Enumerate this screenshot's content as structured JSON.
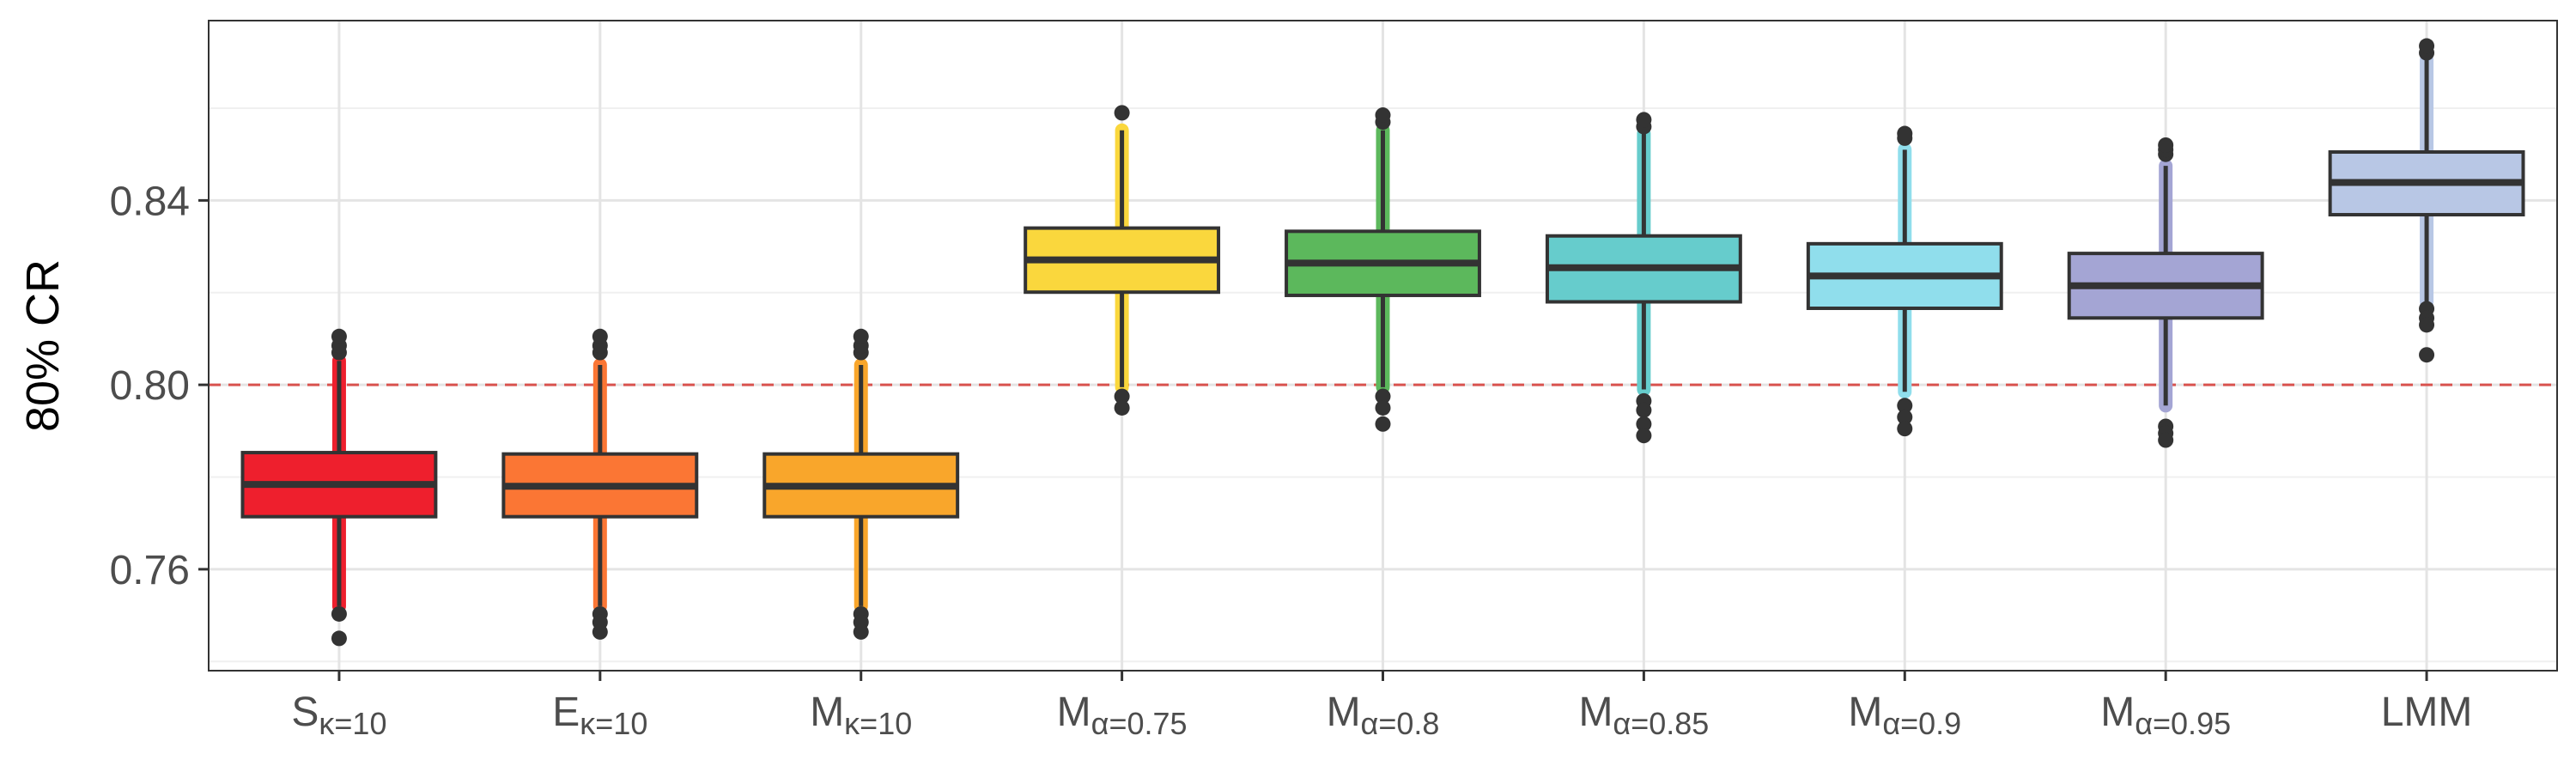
{
  "chart_data": {
    "type": "boxplot",
    "ylabel": "80% CR",
    "ylim": [
      0.738,
      0.879
    ],
    "yticks": [
      0.76,
      0.8,
      0.84
    ],
    "ytick_labels": [
      "0.76",
      "0.80",
      "0.84"
    ],
    "grid": true,
    "reference_line": {
      "y": 0.8,
      "style": "dashed",
      "color": "#d9534f"
    },
    "categories": [
      {
        "main": "S",
        "sub": "κ=10"
      },
      {
        "main": "E",
        "sub": "κ=10"
      },
      {
        "main": "M",
        "sub": "κ=10"
      },
      {
        "main": "M",
        "sub": "α=0.75"
      },
      {
        "main": "M",
        "sub": "α=0.8"
      },
      {
        "main": "M",
        "sub": "α=0.85"
      },
      {
        "main": "M",
        "sub": "α=0.9"
      },
      {
        "main": "M",
        "sub": "α=0.95"
      },
      {
        "main": "LMM",
        "sub": ""
      }
    ],
    "boxes": [
      {
        "q1": 0.7714,
        "median": 0.7784,
        "q3": 0.7853,
        "whisker_low": 0.752,
        "whisker_high": 0.8052,
        "outliers": [
          0.7503,
          0.745,
          0.807,
          0.8085,
          0.8105
        ],
        "fill": "#ee1f2d"
      },
      {
        "q1": 0.7714,
        "median": 0.778,
        "q3": 0.785,
        "whisker_low": 0.752,
        "whisker_high": 0.8043,
        "outliers": [
          0.7503,
          0.7485,
          0.7464,
          0.807,
          0.8085,
          0.8105
        ],
        "fill": "#fb7634"
      },
      {
        "q1": 0.7714,
        "median": 0.778,
        "q3": 0.785,
        "whisker_low": 0.752,
        "whisker_high": 0.8043,
        "outliers": [
          0.7503,
          0.7485,
          0.7464,
          0.807,
          0.8085,
          0.8105
        ],
        "fill": "#f9a62b"
      },
      {
        "q1": 0.8201,
        "median": 0.8271,
        "q3": 0.834,
        "whisker_low": 0.7995,
        "whisker_high": 0.8552,
        "outliers": [
          0.7975,
          0.795,
          0.859
        ],
        "fill": "#fad73d"
      },
      {
        "q1": 0.8194,
        "median": 0.8264,
        "q3": 0.8333,
        "whisker_low": 0.7995,
        "whisker_high": 0.8552,
        "outliers": [
          0.7975,
          0.795,
          0.7915,
          0.857,
          0.8585
        ],
        "fill": "#5cb85c"
      },
      {
        "q1": 0.818,
        "median": 0.8254,
        "q3": 0.8323,
        "whisker_low": 0.799,
        "whisker_high": 0.8545,
        "outliers": [
          0.7965,
          0.7945,
          0.7915,
          0.789,
          0.856,
          0.8575
        ],
        "fill": "#66cccc"
      },
      {
        "q1": 0.8166,
        "median": 0.8236,
        "q3": 0.8306,
        "whisker_low": 0.7985,
        "whisker_high": 0.851,
        "outliers": [
          0.7955,
          0.793,
          0.7905,
          0.8535,
          0.8545
        ],
        "fill": "#90deec"
      },
      {
        "q1": 0.8145,
        "median": 0.8215,
        "q3": 0.8285,
        "whisker_low": 0.7955,
        "whisker_high": 0.8475,
        "outliers": [
          0.791,
          0.7895,
          0.788,
          0.85,
          0.851,
          0.852
        ],
        "fill": "#a4a5d4"
      },
      {
        "q1": 0.8369,
        "median": 0.8439,
        "q3": 0.8505,
        "whisker_low": 0.818,
        "whisker_high": 0.8705,
        "outliers": [
          0.8165,
          0.8145,
          0.813,
          0.8065,
          0.872,
          0.8735
        ],
        "fill": "#b8c7e5"
      }
    ]
  }
}
